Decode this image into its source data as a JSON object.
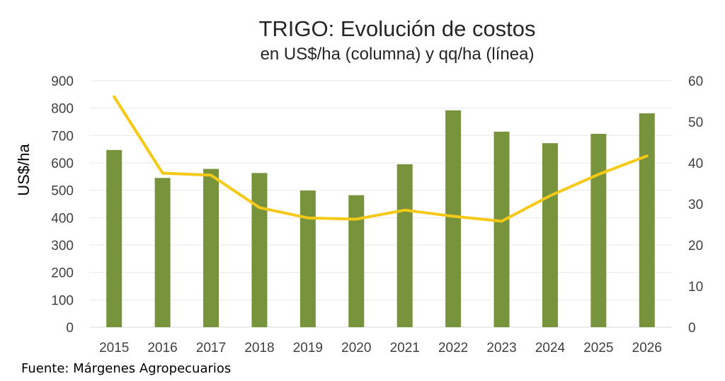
{
  "chart_data": {
    "type": "bar",
    "title": "TRIGO: Evolución de costos",
    "subtitle": "en US$/ha (columna) y qq/ha (línea)",
    "ylabel": "US$/ha",
    "y2label": "",
    "categories": [
      "2015",
      "2016",
      "2017",
      "2018",
      "2019",
      "2020",
      "2021",
      "2022",
      "2023",
      "2024",
      "2025",
      "2026"
    ],
    "ylim": [
      0,
      900
    ],
    "yticks": [
      0,
      100,
      200,
      300,
      400,
      500,
      600,
      700,
      800,
      900
    ],
    "y2lim": [
      0,
      60
    ],
    "y2ticks": [
      0,
      10,
      20,
      30,
      40,
      50,
      60
    ],
    "grid": true,
    "series": [
      {
        "type": "bar",
        "axis": "left",
        "color": "#77933c",
        "values": [
          647,
          545,
          578,
          563,
          499,
          482,
          595,
          792,
          714,
          672,
          706,
          781
        ]
      },
      {
        "type": "line",
        "axis": "right",
        "color": "#f5c916",
        "values": [
          56.1,
          37.5,
          37.0,
          29.1,
          26.6,
          26.3,
          28.5,
          27.0,
          25.8,
          32.0,
          37.2,
          41.7
        ]
      }
    ]
  },
  "source": "Fuente: Márgenes Agropecuarios"
}
